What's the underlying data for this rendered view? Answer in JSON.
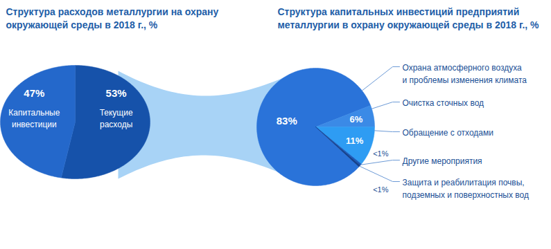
{
  "chart_data": [
    {
      "type": "pie",
      "title": "Структура расходов металлургии на охрану\nокружающей среды в 2018 г., %",
      "categories": [
        "Текущие\nрасходы",
        "Капитальные\nинвестиции"
      ],
      "values": [
        53,
        47
      ],
      "value_labels": [
        "53%",
        "47%"
      ],
      "colors": [
        "#1652aa",
        "#2468cb"
      ],
      "data_labels": true
    },
    {
      "type": "pie",
      "title": "Структура капитальных инвестиций предприятий\nметаллургии в охрану окружающей среды в 2018 г., %",
      "categories": [
        "Охрана атмосферного воздуха\nи проблемы изменения климата",
        "Очистка сточных вод",
        "Обращение с отходами",
        "Другие мероприятия",
        "Защита и реабилитация почвы,\nподземных и поверхностных вод"
      ],
      "values": [
        83,
        6,
        11,
        0.5,
        0.5
      ],
      "value_labels": [
        "83%",
        "6%",
        "11%",
        "<1%",
        "<1%"
      ],
      "colors": [
        "#2a73d9",
        "#3b8ae6",
        "#2e9cf3",
        "#1b58b8",
        "#123f8a"
      ],
      "data_labels": true
    }
  ]
}
